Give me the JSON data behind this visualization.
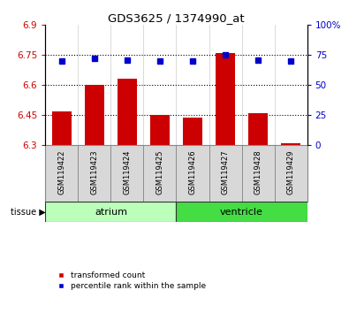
{
  "title": "GDS3625 / 1374990_at",
  "samples": [
    "GSM119422",
    "GSM119423",
    "GSM119424",
    "GSM119425",
    "GSM119426",
    "GSM119427",
    "GSM119428",
    "GSM119429"
  ],
  "transformed_count": [
    6.47,
    6.6,
    6.63,
    6.45,
    6.44,
    6.76,
    6.46,
    6.31
  ],
  "percentile_rank": [
    70,
    72,
    71,
    70,
    70,
    75,
    71,
    70
  ],
  "groups": [
    {
      "label": "atrium",
      "start": 0,
      "end": 4,
      "color": "#bbffbb"
    },
    {
      "label": "ventricle",
      "start": 4,
      "end": 8,
      "color": "#44dd44"
    }
  ],
  "ylim_left": [
    6.3,
    6.9
  ],
  "ylim_right": [
    0,
    100
  ],
  "yticks_left": [
    6.3,
    6.45,
    6.6,
    6.75,
    6.9
  ],
  "ytick_labels_left": [
    "6.3",
    "6.45",
    "6.6",
    "6.75",
    "6.9"
  ],
  "yticks_right": [
    0,
    25,
    50,
    75,
    100
  ],
  "ytick_labels_right": [
    "0",
    "25",
    "50",
    "75",
    "100%"
  ],
  "hlines": [
    6.45,
    6.6,
    6.75
  ],
  "bar_color": "#cc0000",
  "dot_color": "#0000cc",
  "bar_width": 0.6,
  "tissue_label": "tissue",
  "legend_items": [
    "transformed count",
    "percentile rank within the sample"
  ],
  "legend_colors": [
    "#cc0000",
    "#0000cc"
  ],
  "background_color": "#ffffff"
}
